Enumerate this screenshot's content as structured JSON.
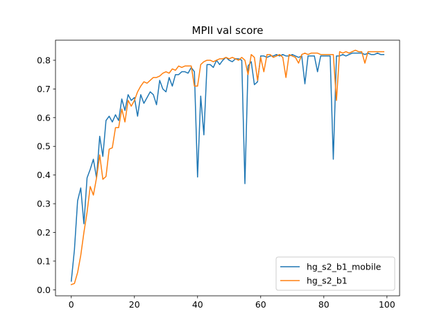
{
  "chart_data": {
    "type": "line",
    "title": "MPII val score",
    "xlabel": "",
    "ylabel": "",
    "xlim": [
      -5,
      104
    ],
    "ylim": [
      -0.021,
      0.87
    ],
    "xticks": [
      0,
      20,
      40,
      60,
      80,
      100
    ],
    "yticks": [
      0.0,
      0.1,
      0.2,
      0.3,
      0.4,
      0.5,
      0.6,
      0.7,
      0.8
    ],
    "grid": false,
    "legend_position": "lower-right",
    "x": [
      0,
      1,
      2,
      3,
      4,
      5,
      6,
      7,
      8,
      9,
      10,
      11,
      12,
      13,
      14,
      15,
      16,
      17,
      18,
      19,
      20,
      21,
      22,
      23,
      24,
      25,
      26,
      27,
      28,
      29,
      30,
      31,
      32,
      33,
      34,
      35,
      36,
      37,
      38,
      39,
      40,
      41,
      42,
      43,
      44,
      45,
      46,
      47,
      48,
      49,
      50,
      51,
      52,
      53,
      54,
      55,
      56,
      57,
      58,
      59,
      60,
      61,
      62,
      63,
      64,
      65,
      66,
      67,
      68,
      69,
      70,
      71,
      72,
      73,
      74,
      75,
      76,
      77,
      78,
      79,
      80,
      81,
      82,
      83,
      84,
      85,
      86,
      87,
      88,
      89,
      90,
      91,
      92,
      93,
      94,
      95,
      96,
      97,
      98,
      99
    ],
    "series": [
      {
        "name": "hg_s2_b1_mobile",
        "color": "#1f77b4",
        "values": [
          0.03,
          0.14,
          0.31,
          0.355,
          0.23,
          0.39,
          0.42,
          0.455,
          0.39,
          0.535,
          0.465,
          0.59,
          0.605,
          0.585,
          0.61,
          0.59,
          0.665,
          0.625,
          0.68,
          0.66,
          0.67,
          0.605,
          0.68,
          0.65,
          0.67,
          0.69,
          0.68,
          0.645,
          0.73,
          0.7,
          0.69,
          0.74,
          0.71,
          0.75,
          0.75,
          0.76,
          0.76,
          0.755,
          0.775,
          0.76,
          0.393,
          0.675,
          0.54,
          0.785,
          0.785,
          0.775,
          0.8,
          0.785,
          0.8,
          0.81,
          0.8,
          0.795,
          0.805,
          0.805,
          0.8,
          0.37,
          0.78,
          0.795,
          0.715,
          0.725,
          0.815,
          0.815,
          0.81,
          0.815,
          0.815,
          0.82,
          0.815,
          0.82,
          0.815,
          0.815,
          0.82,
          0.815,
          0.81,
          0.815,
          0.718,
          0.815,
          0.815,
          0.815,
          0.76,
          0.815,
          0.815,
          0.815,
          0.815,
          0.455,
          0.815,
          0.815,
          0.82,
          0.815,
          0.82,
          0.825,
          0.825,
          0.825,
          0.825,
          0.82,
          0.825,
          0.82,
          0.82,
          0.825,
          0.82,
          0.82
        ]
      },
      {
        "name": "hg_s2_b1",
        "color": "#ff7f0e",
        "values": [
          0.018,
          0.022,
          0.06,
          0.12,
          0.2,
          0.27,
          0.36,
          0.33,
          0.39,
          0.47,
          0.385,
          0.395,
          0.49,
          0.495,
          0.565,
          0.565,
          0.63,
          0.585,
          0.66,
          0.64,
          0.66,
          0.69,
          0.71,
          0.725,
          0.72,
          0.73,
          0.74,
          0.74,
          0.745,
          0.755,
          0.76,
          0.755,
          0.77,
          0.765,
          0.78,
          0.775,
          0.78,
          0.78,
          0.78,
          0.71,
          0.71,
          0.785,
          0.795,
          0.8,
          0.8,
          0.795,
          0.8,
          0.805,
          0.805,
          0.81,
          0.805,
          0.81,
          0.805,
          0.8,
          0.81,
          0.8,
          0.75,
          0.82,
          0.81,
          0.73,
          0.81,
          0.76,
          0.82,
          0.82,
          0.81,
          0.815,
          0.82,
          0.81,
          0.74,
          0.82,
          0.815,
          0.81,
          0.79,
          0.82,
          0.825,
          0.82,
          0.825,
          0.825,
          0.825,
          0.82,
          0.82,
          0.82,
          0.82,
          0.82,
          0.66,
          0.83,
          0.825,
          0.83,
          0.825,
          0.83,
          0.835,
          0.83,
          0.83,
          0.79,
          0.83,
          0.83,
          0.83,
          0.83,
          0.83,
          0.83
        ]
      }
    ]
  }
}
